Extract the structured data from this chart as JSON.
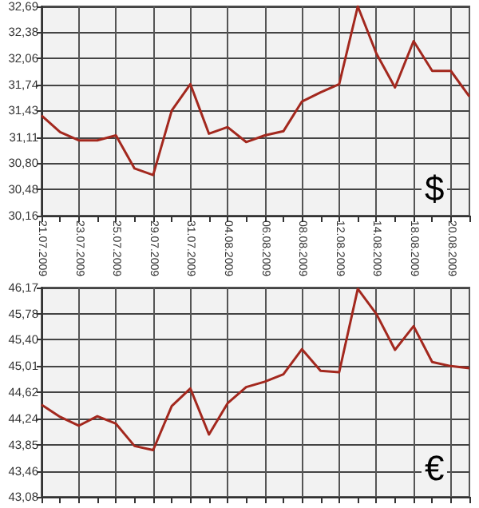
{
  "chart_data": [
    {
      "type": "line",
      "categories": [
        "21.07.2009",
        null,
        "23.07.2009",
        null,
        "25.07.2009",
        null,
        "29.07.2009",
        null,
        "31.07.2009",
        null,
        "04.08.2009",
        null,
        "06.08.2009",
        null,
        "08.08.2009",
        null,
        "12.08.2009",
        null,
        "14.08.2009",
        null,
        "18.08.2009",
        null,
        "20.08.2009",
        null
      ],
      "series": [
        {
          "color": "#a3281e",
          "values": [
            31.37,
            31.17,
            31.07,
            31.07,
            31.13,
            30.73,
            30.65,
            31.43,
            31.75,
            31.15,
            31.23,
            31.05,
            31.13,
            31.18,
            31.54,
            31.65,
            31.75,
            32.69,
            32.12,
            31.71,
            32.27,
            31.91,
            31.91,
            31.6
          ]
        }
      ],
      "ylim": [
        30.16,
        32.69
      ],
      "yticks": [
        {
          "value": 30.16,
          "label": "30,16"
        },
        {
          "value": 30.48,
          "label": "30,48"
        },
        {
          "value": 30.8,
          "label": "30,80"
        },
        {
          "value": 31.11,
          "label": "31,11"
        },
        {
          "value": 31.43,
          "label": "31,43"
        },
        {
          "value": 31.74,
          "label": "31,74"
        },
        {
          "value": 32.06,
          "label": "32,06"
        },
        {
          "value": 32.38,
          "label": "32,38"
        },
        {
          "value": 32.69,
          "label": "32,69"
        }
      ],
      "grid": true,
      "annotations": [
        "$"
      ]
    },
    {
      "type": "line",
      "categories": [
        "21.07.2009",
        null,
        "23.07.2009",
        null,
        "25.07.2009",
        null,
        "29.07.2009",
        null,
        "31.07.2009",
        null,
        "04.08.2009",
        null,
        "06.08.2009",
        null,
        "08.08.2009",
        null,
        "12.08.2009",
        null,
        "14.08.2009",
        null,
        "18.08.2009",
        null,
        "20.08.2009",
        null
      ],
      "series": [
        {
          "color": "#a3281e",
          "values": [
            44.44,
            44.26,
            44.13,
            44.27,
            44.16,
            43.83,
            43.77,
            44.42,
            44.68,
            44.0,
            44.46,
            44.7,
            44.78,
            44.89,
            45.26,
            44.94,
            44.92,
            46.15,
            45.78,
            45.25,
            45.6,
            45.07,
            45.01,
            44.98
          ]
        }
      ],
      "ylim": [
        43.08,
        46.17
      ],
      "yticks": [
        {
          "value": 43.08,
          "label": "43,08"
        },
        {
          "value": 43.46,
          "label": "43,46"
        },
        {
          "value": 43.85,
          "label": "43,85"
        },
        {
          "value": 44.24,
          "label": "44,24"
        },
        {
          "value": 44.62,
          "label": "44,62"
        },
        {
          "value": 45.01,
          "label": "45,01"
        },
        {
          "value": 45.4,
          "label": "45,40"
        },
        {
          "value": 45.78,
          "label": "45,78"
        },
        {
          "value": 46.17,
          "label": "46,17"
        }
      ],
      "grid": true,
      "tick_labels": "y",
      "annotations": [
        "€"
      ]
    }
  ]
}
